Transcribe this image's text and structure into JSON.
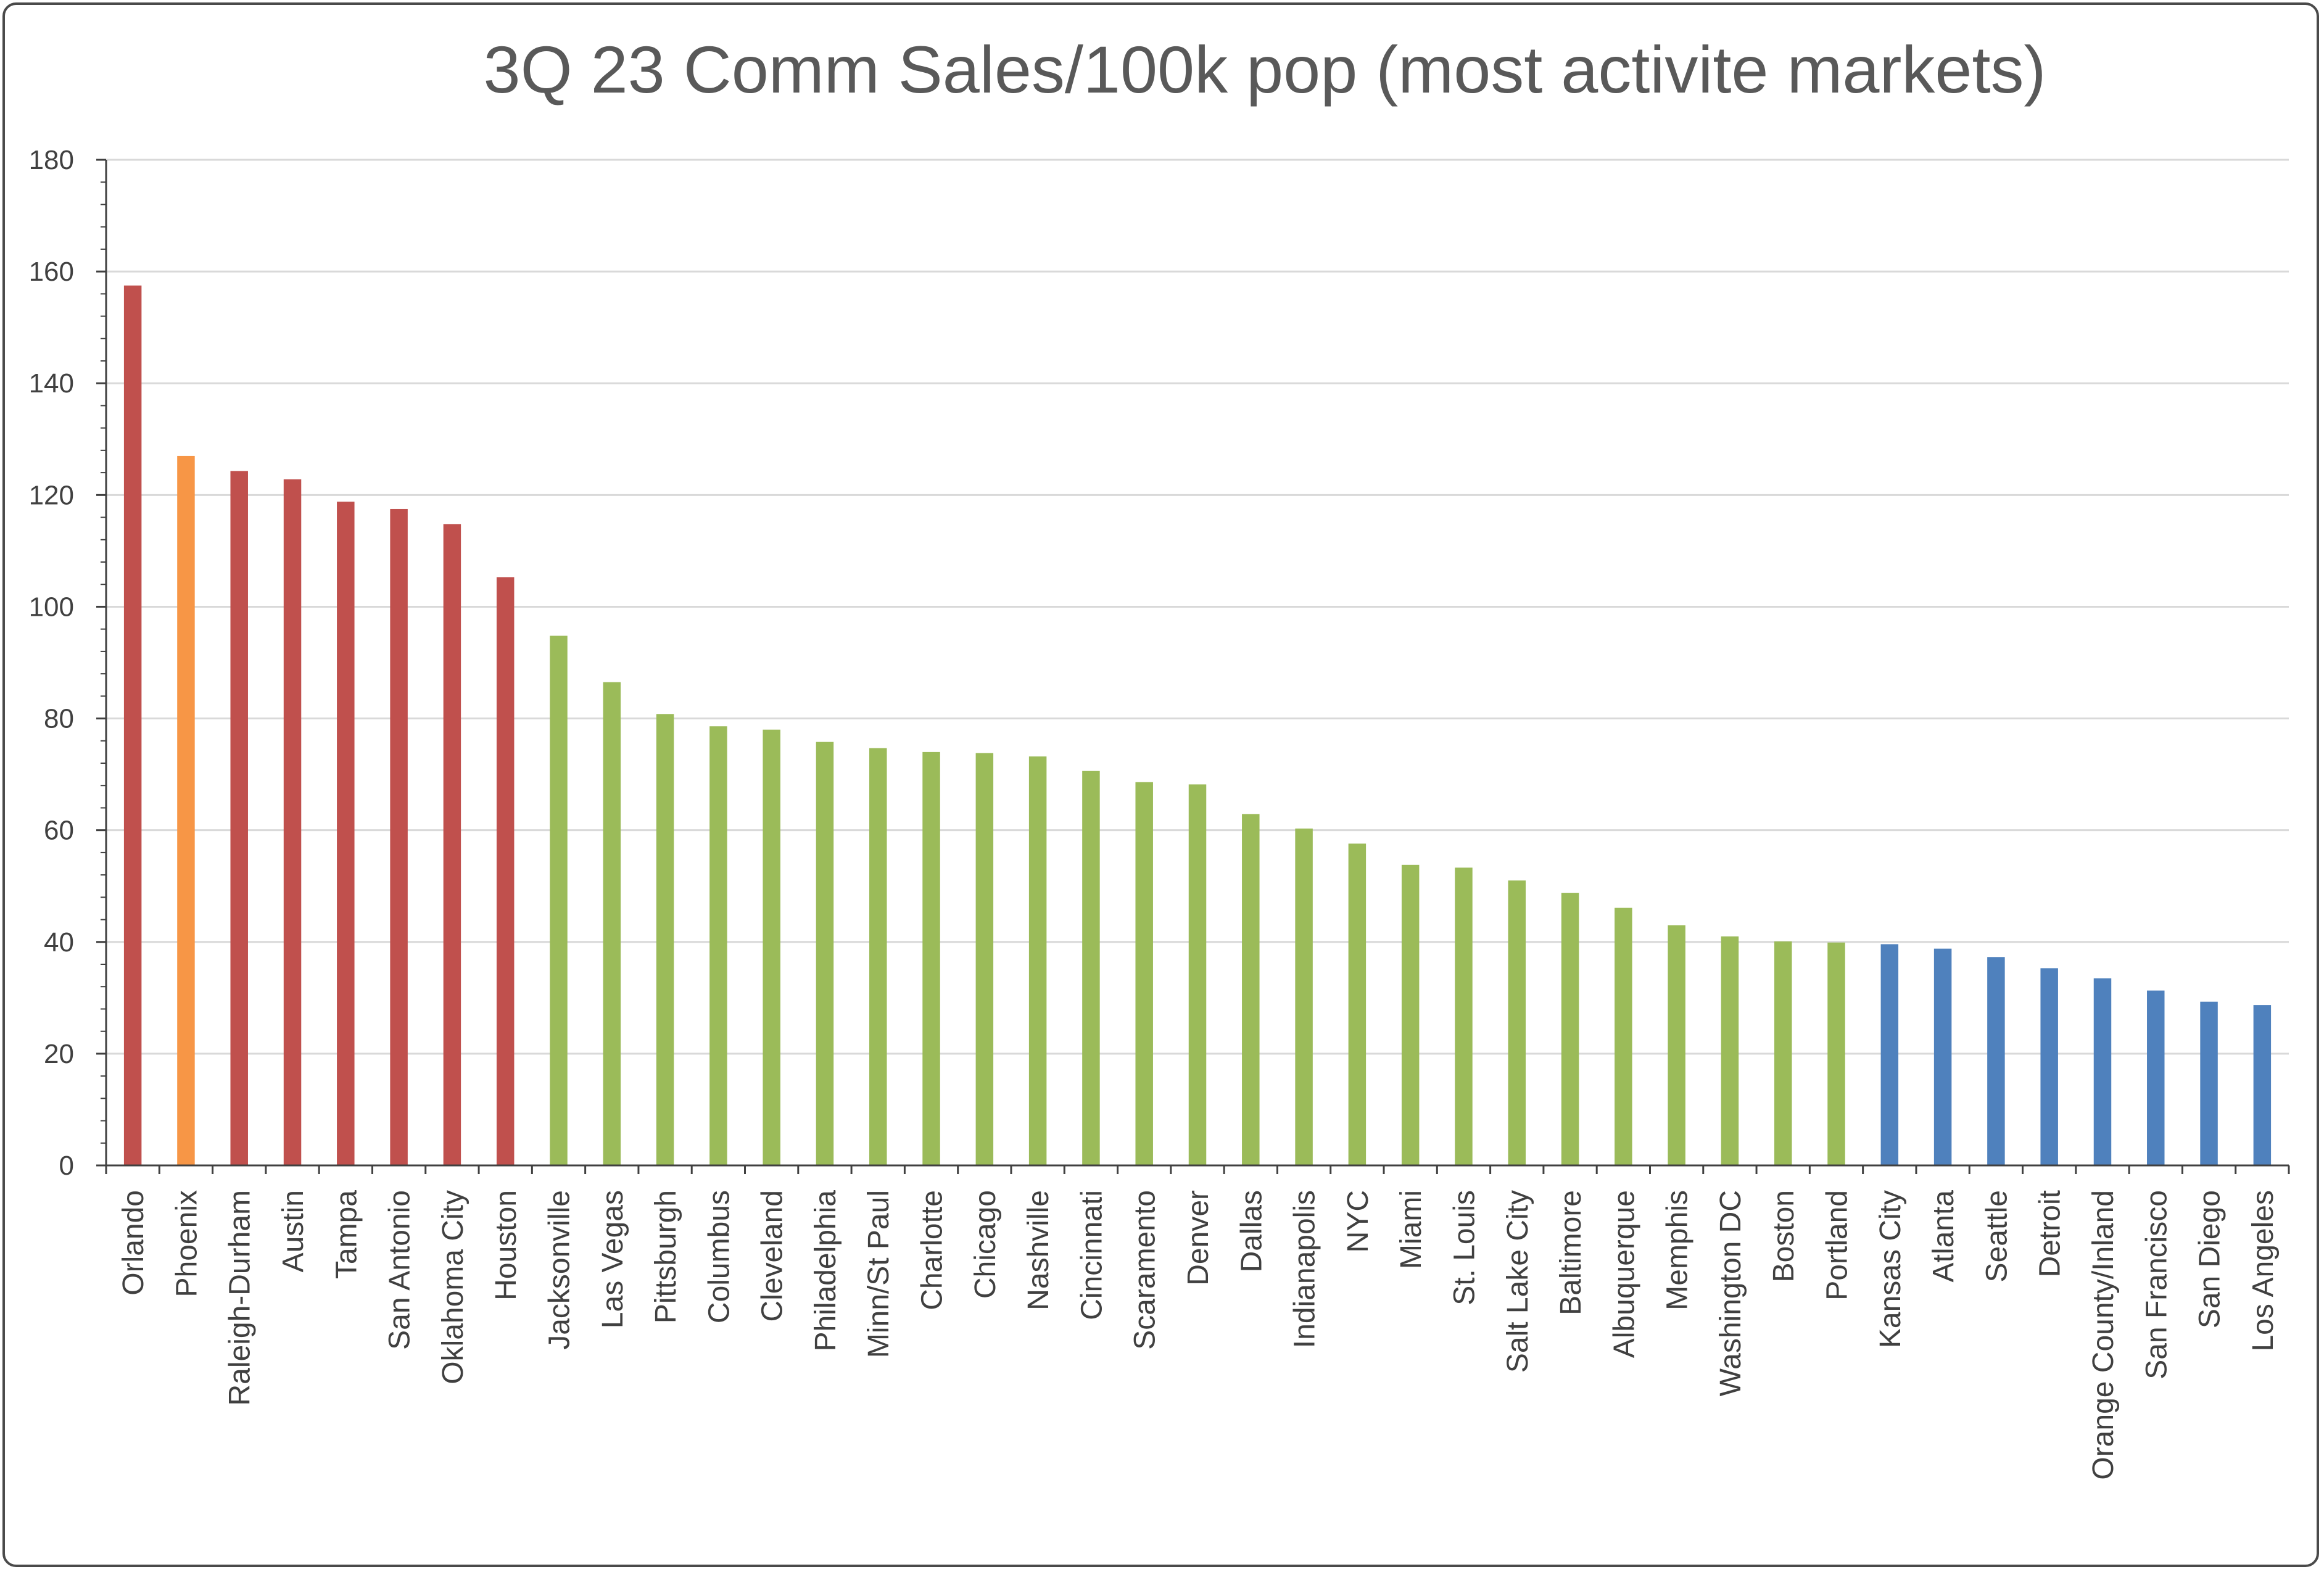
{
  "chart_data": {
    "type": "bar",
    "title": "3Q 23 Comm Sales/100k pop (most activite markets)",
    "xlabel": "",
    "ylabel": "",
    "ylim": [
      0,
      180
    ],
    "yticks": [
      0,
      20,
      40,
      60,
      80,
      100,
      120,
      140,
      160,
      180
    ],
    "grid": true,
    "legend": "none",
    "categories": [
      "Orlando",
      "Phoenix",
      "Raleigh-Durham",
      "Austin",
      "Tampa",
      "San Antonio",
      "Oklahoma City",
      "Houston",
      "Jacksonville",
      "Las Vegas",
      "Pittsburgh",
      "Columbus",
      "Cleveland",
      "Philadelphia",
      "Minn/St Paul",
      "Charlotte",
      "Chicago",
      "Nashville",
      "Cincinnati",
      "Scaramento",
      "Denver",
      "Dallas",
      "Indianapolis",
      "NYC",
      "Miami",
      "St. Louis",
      "Salt Lake City",
      "Baltimore",
      "Albuquerque",
      "Memphis",
      "Washington DC",
      "Boston",
      "Portland",
      "Kansas City",
      "Atlanta",
      "Seattle",
      "Detroit",
      "Orange County/Inland",
      "San Francisco",
      "San Diego",
      "Los Angeles"
    ],
    "values": [
      157.5,
      127,
      124.3,
      122.8,
      118.8,
      117.5,
      114.8,
      105.3,
      94.8,
      86.5,
      80.8,
      78.6,
      78,
      75.8,
      74.7,
      74,
      73.8,
      73.2,
      70.6,
      68.6,
      68.2,
      62.9,
      60.3,
      57.6,
      53.8,
      53.3,
      51,
      48.8,
      46.1,
      43,
      41,
      40.1,
      39.9,
      39.6,
      38.8,
      37.3,
      35.3,
      33.5,
      31.3,
      29.3,
      28.7
    ],
    "bar_colors": [
      "#c0504d",
      "#f79646",
      "#c0504d",
      "#c0504d",
      "#c0504d",
      "#c0504d",
      "#c0504d",
      "#c0504d",
      "#9bbb59",
      "#9bbb59",
      "#9bbb59",
      "#9bbb59",
      "#9bbb59",
      "#9bbb59",
      "#9bbb59",
      "#9bbb59",
      "#9bbb59",
      "#9bbb59",
      "#9bbb59",
      "#9bbb59",
      "#9bbb59",
      "#9bbb59",
      "#9bbb59",
      "#9bbb59",
      "#9bbb59",
      "#9bbb59",
      "#9bbb59",
      "#9bbb59",
      "#9bbb59",
      "#9bbb59",
      "#9bbb59",
      "#9bbb59",
      "#9bbb59",
      "#4f81bd",
      "#4f81bd",
      "#4f81bd",
      "#4f81bd",
      "#4f81bd",
      "#4f81bd",
      "#4f81bd",
      "#4f81bd"
    ]
  },
  "colors": {
    "red": "#c0504d",
    "orange": "#f79646",
    "green": "#9bbb59",
    "blue": "#4f81bd",
    "grid": "#d9d9d9",
    "axis": "#404040",
    "text": "#404040",
    "title": "#595959"
  }
}
